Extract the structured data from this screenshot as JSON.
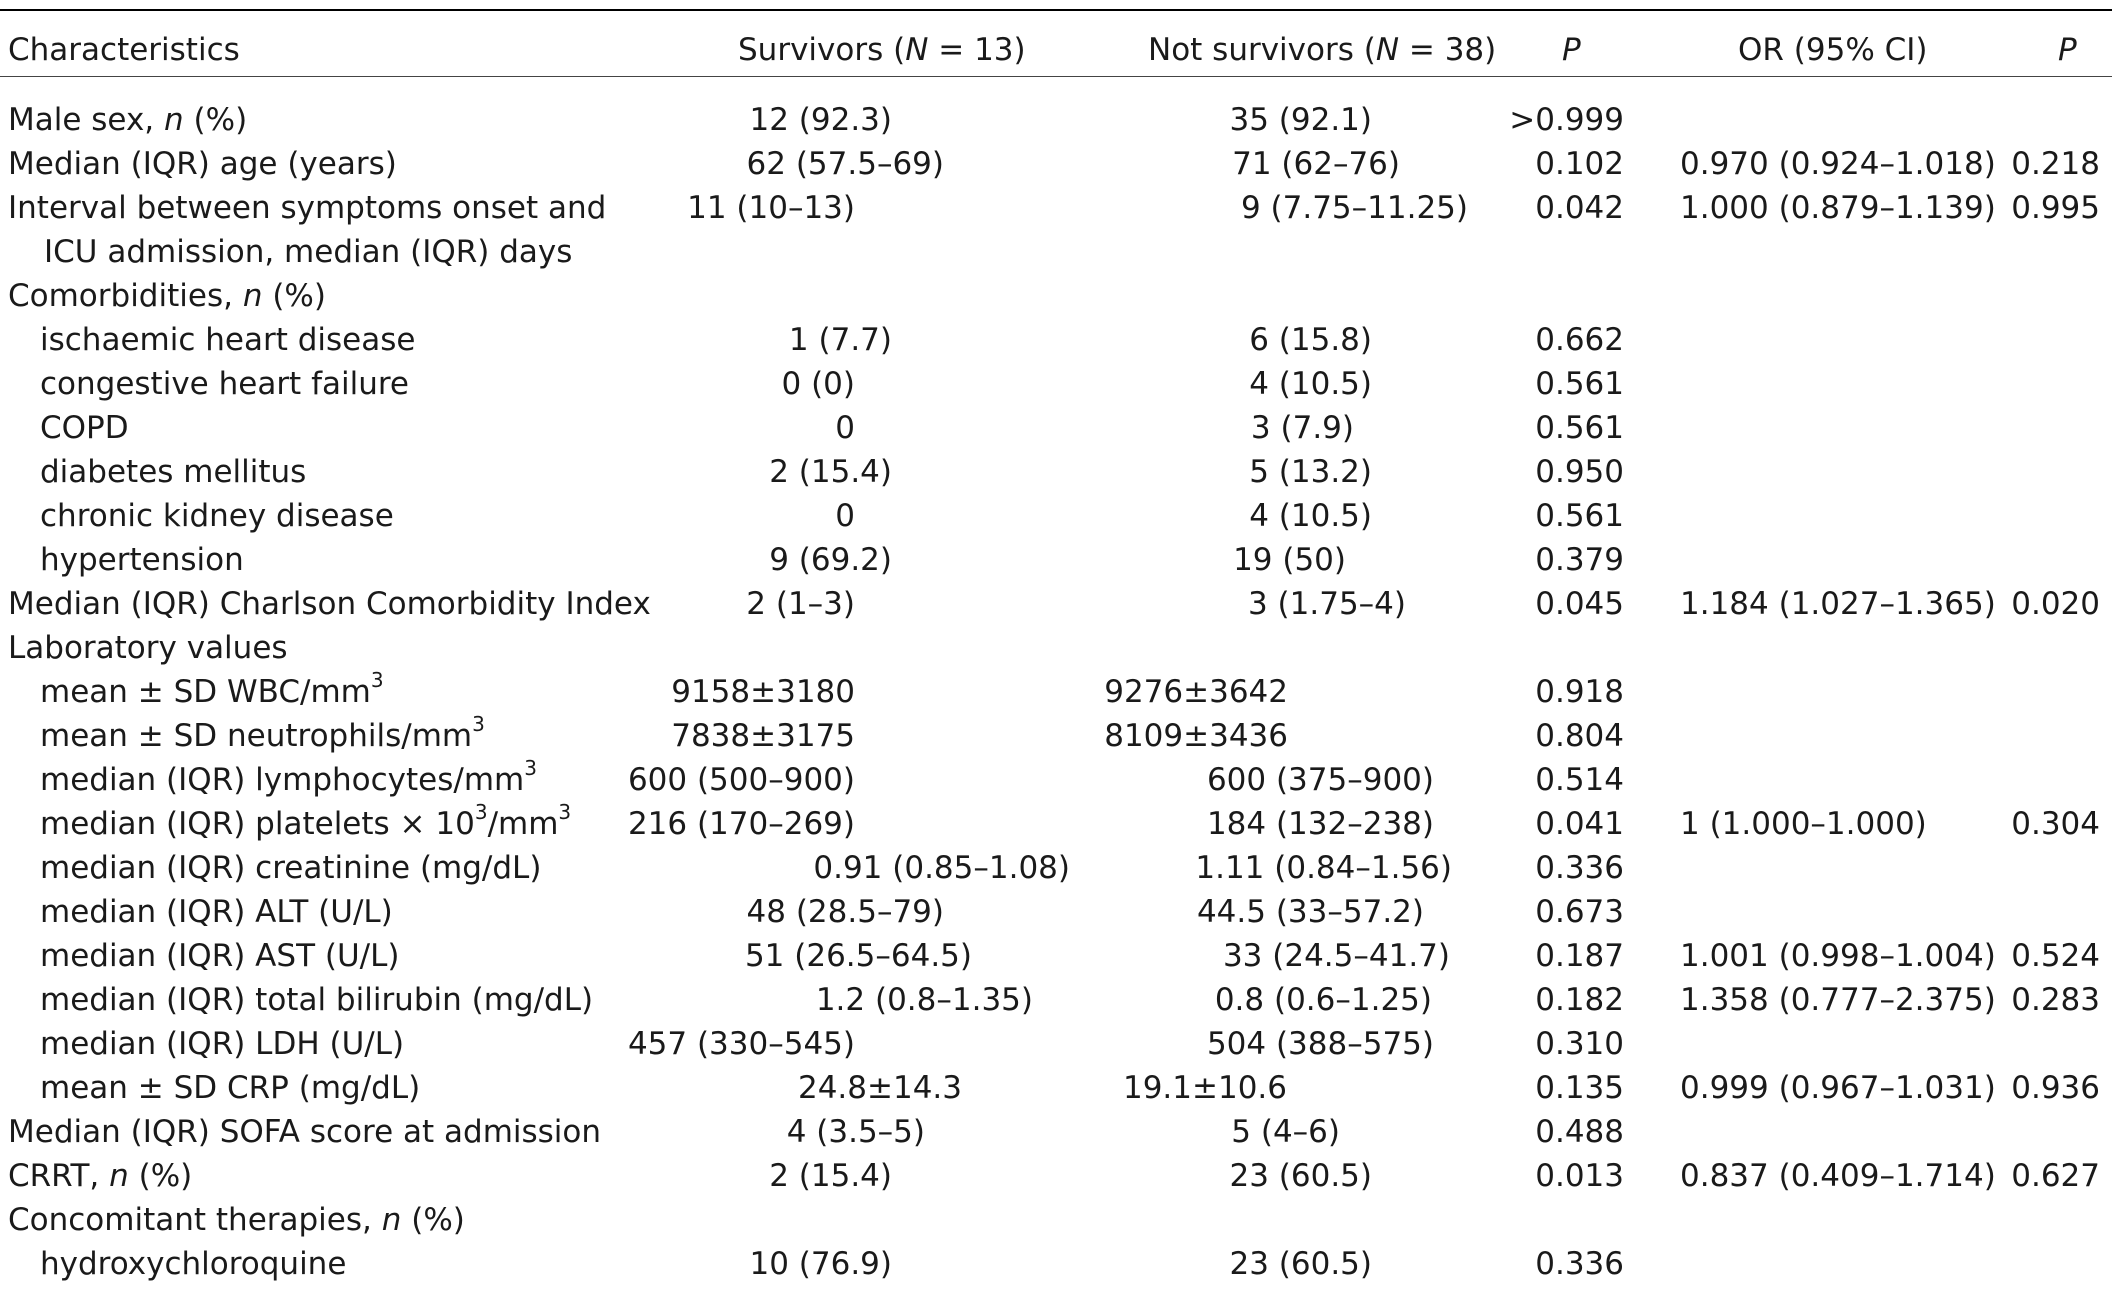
{
  "header": {
    "characteristics": "Characteristics",
    "survivors_pre": "Survivors (",
    "survivors_n": "N",
    "survivors_post": " = 13)",
    "notsurv_pre": "Not survivors (",
    "notsurv_n": "N",
    "notsurv_post": " = 38)",
    "p1": "P",
    "or": "OR (95% CI)",
    "p2": "P"
  },
  "rows": [
    {
      "pre": "Male sex, ",
      "it": "n",
      "post": " (%)",
      "s": "12 (92.3)",
      "ns": "35 (92.1)",
      "p": ">0.999",
      "or": "",
      "p2": ""
    },
    {
      "pre": "Median (IQR) age (years)",
      "it": "",
      "post": "",
      "s": "62 (57.5–69)",
      "ns": "71 (62–76)",
      "p": "0.102",
      "or": "0.970 (0.924–1.018)",
      "p2": "0.218"
    },
    {
      "pre": "Interval between symptoms onset and",
      "it": "",
      "post": "",
      "s": "11 (10–13)",
      "ns": "9 (7.75–11.25)",
      "p": "0.042",
      "or": "1.000 (0.879–1.139)",
      "p2": "0.995"
    },
    {
      "pre": "ICU admission, median (IQR) days",
      "it": "",
      "post": "",
      "s": "",
      "ns": "",
      "p": "",
      "or": "",
      "p2": ""
    },
    {
      "pre": "Comorbidities, ",
      "it": "n",
      "post": " (%)",
      "s": "",
      "ns": "",
      "p": "",
      "or": "",
      "p2": ""
    },
    {
      "pre": "ischaemic heart disease",
      "it": "",
      "post": "",
      "s": "1 (7.7)",
      "ns": "6 (15.8)",
      "p": "0.662",
      "or": "",
      "p2": ""
    },
    {
      "pre": "congestive heart failure",
      "it": "",
      "post": "",
      "s": "0 (0)",
      "ns": "4 (10.5)",
      "p": "0.561",
      "or": "",
      "p2": ""
    },
    {
      "pre": "COPD",
      "it": "",
      "post": "",
      "s": "0",
      "ns": "3 (7.9)",
      "p": "0.561",
      "or": "",
      "p2": ""
    },
    {
      "pre": "diabetes mellitus",
      "it": "",
      "post": "",
      "s": "2 (15.4)",
      "ns": "5 (13.2)",
      "p": "0.950",
      "or": "",
      "p2": ""
    },
    {
      "pre": "chronic kidney disease",
      "it": "",
      "post": "",
      "s": "0",
      "ns": "4 (10.5)",
      "p": "0.561",
      "or": "",
      "p2": ""
    },
    {
      "pre": "hypertension",
      "it": "",
      "post": "",
      "s": "9 (69.2)",
      "ns": "19 (50)",
      "p": "0.379",
      "or": "",
      "p2": ""
    },
    {
      "pre": "Median (IQR) Charlson Comorbidity Index",
      "it": "",
      "post": "",
      "s": "2 (1–3)",
      "ns": "3 (1.75–4)",
      "p": "0.045",
      "or": "1.184 (1.027–1.365)",
      "p2": "0.020"
    },
    {
      "pre": "Laboratory values",
      "it": "",
      "post": "",
      "s": "",
      "ns": "",
      "p": "",
      "or": "",
      "p2": ""
    },
    {
      "pre": "mean ± SD WBC/mm",
      "sup": "3",
      "post2": "",
      "s": "9158±3180",
      "ns": "9276±3642",
      "p": "0.918",
      "or": "",
      "p2": ""
    },
    {
      "pre": "mean ± SD neutrophils/mm",
      "sup": "3",
      "post2": "",
      "s": "7838±3175",
      "ns": "8109±3436",
      "p": "0.804",
      "or": "",
      "p2": ""
    },
    {
      "pre": "median (IQR) lymphocytes/mm",
      "sup": "3",
      "post2": "",
      "s": "600 (500–900)",
      "ns": "600 (375–900)",
      "p": "0.514",
      "or": "",
      "p2": ""
    },
    {
      "pre": "median (IQR) platelets × 10",
      "sup": "3",
      "post2": "/mm",
      "sup2": "3",
      "s": "216 (170–269)",
      "ns": "184 (132–238)",
      "p": "0.041",
      "or": "1 (1.000–1.000)",
      "p2": "0.304"
    },
    {
      "pre": "median (IQR) creatinine (mg/dL)",
      "it": "",
      "post": "",
      "s": "0.91 (0.85–1.08)",
      "ns": "1.11 (0.84–1.56)",
      "p": "0.336",
      "or": "",
      "p2": ""
    },
    {
      "pre": "median (IQR) ALT (U/L)",
      "it": "",
      "post": "",
      "s": "48 (28.5–79)",
      "ns": "44.5 (33–57.2)",
      "p": "0.673",
      "or": "",
      "p2": ""
    },
    {
      "pre": "median (IQR) AST (U/L)",
      "it": "",
      "post": "",
      "s": "51 (26.5–64.5)",
      "ns": "33 (24.5–41.7)",
      "p": "0.187",
      "or": "1.001 (0.998–1.004)",
      "p2": "0.524"
    },
    {
      "pre": "median (IQR) total bilirubin (mg/dL)",
      "it": "",
      "post": "",
      "s": "1.2 (0.8–1.35)",
      "ns": "0.8 (0.6–1.25)",
      "p": "0.182",
      "or": "1.358 (0.777–2.375)",
      "p2": "0.283"
    },
    {
      "pre": "median (IQR) LDH (U/L)",
      "it": "",
      "post": "",
      "s": "457 (330–545)",
      "ns": "504 (388–575)",
      "p": "0.310",
      "or": "",
      "p2": ""
    },
    {
      "pre": "mean ± SD CRP (mg/dL)",
      "it": "",
      "post": "",
      "s": "24.8±14.3",
      "ns": "19.1±10.6",
      "p": "0.135",
      "or": "0.999 (0.967–1.031)",
      "p2": "0.936"
    },
    {
      "pre": "Median (IQR) SOFA score at admission",
      "it": "",
      "post": "",
      "s": "4 (3.5–5)",
      "ns": "5 (4–6)",
      "p": "0.488",
      "or": "",
      "p2": ""
    },
    {
      "pre": "CRRT, ",
      "it": "n",
      "post": " (%)",
      "s": "2 (15.4)",
      "ns": "23 (60.5)",
      "p": "0.013",
      "or": "0.837 (0.409–1.714)",
      "p2": "0.627"
    },
    {
      "pre": "Concomitant therapies, ",
      "it": "n",
      "post": " (%)",
      "s": "",
      "ns": "",
      "p": "",
      "or": "",
      "p2": ""
    },
    {
      "pre": "hydroxychloroquine",
      "it": "",
      "post": "",
      "s": "10 (76.9)",
      "ns": "23 (60.5)",
      "p": "0.336",
      "or": "",
      "p2": ""
    }
  ]
}
